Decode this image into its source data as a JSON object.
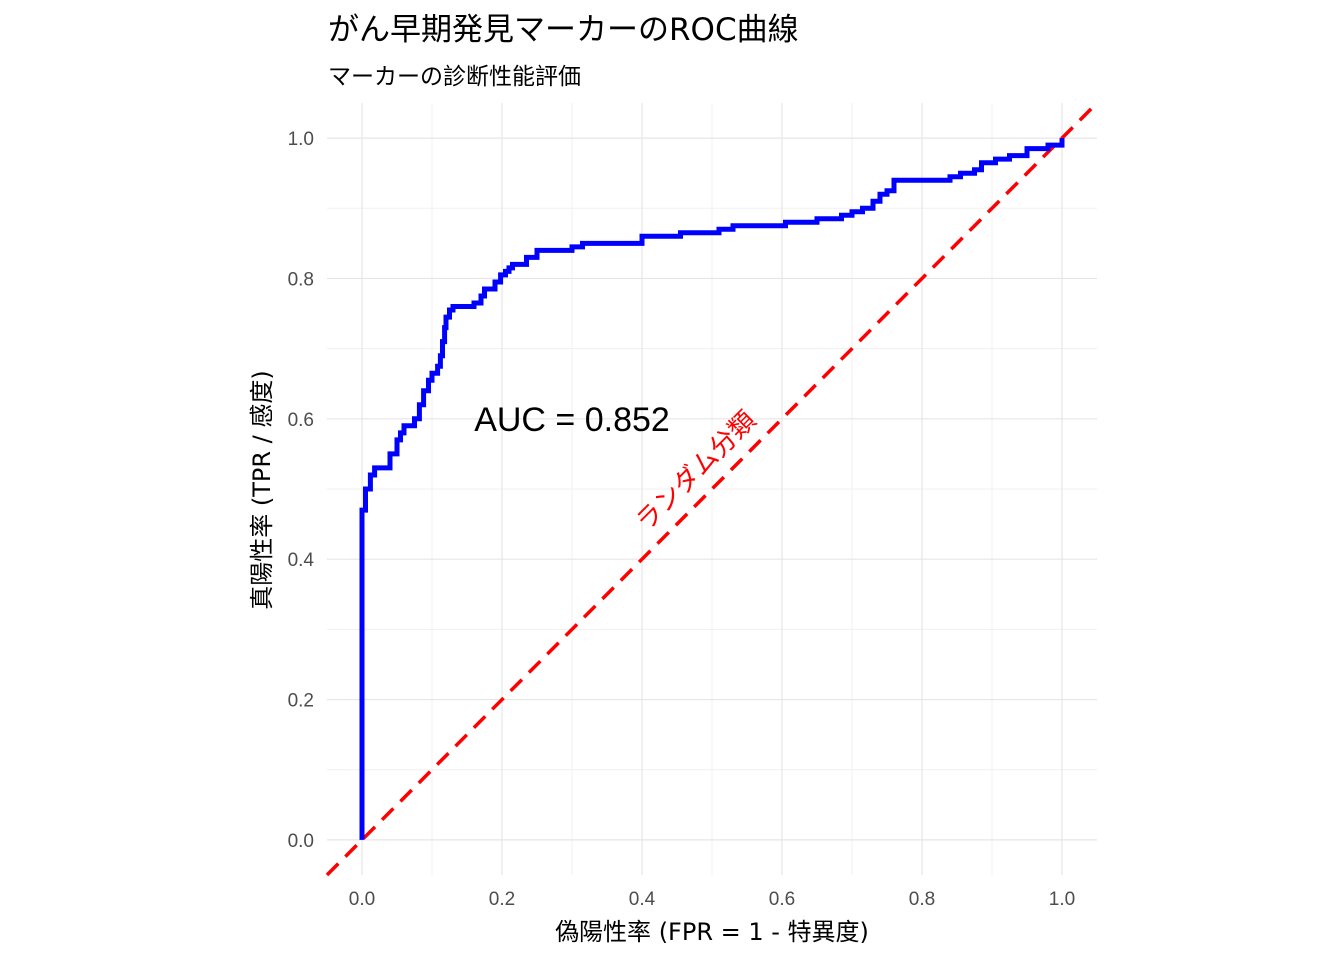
{
  "chart_data": {
    "type": "line",
    "title": "がん早期発見マーカーのROC曲線",
    "subtitle": "マーカーの診断性能評価",
    "xlabel": "偽陽性率 (FPR = 1 - 特異度)",
    "ylabel": "真陽性率 (TPR / 感度)",
    "xlim": [
      -0.05,
      1.05
    ],
    "ylim": [
      -0.05,
      1.05
    ],
    "x_ticks": [
      "0.0",
      "0.2",
      "0.4",
      "0.6",
      "0.8",
      "1.0"
    ],
    "y_ticks": [
      "0.0",
      "0.2",
      "0.4",
      "0.6",
      "0.8",
      "1.0"
    ],
    "grid": true,
    "legend": "none",
    "series": [
      {
        "color": "#0000ff",
        "style": "step",
        "points": [
          [
            0.0,
            0.0
          ],
          [
            0.0,
            0.47
          ],
          [
            0.005,
            0.47
          ],
          [
            0.005,
            0.5
          ],
          [
            0.012,
            0.5
          ],
          [
            0.012,
            0.52
          ],
          [
            0.018,
            0.52
          ],
          [
            0.018,
            0.53
          ],
          [
            0.04,
            0.53
          ],
          [
            0.04,
            0.55
          ],
          [
            0.05,
            0.55
          ],
          [
            0.05,
            0.57
          ],
          [
            0.055,
            0.57
          ],
          [
            0.055,
            0.58
          ],
          [
            0.06,
            0.58
          ],
          [
            0.06,
            0.59
          ],
          [
            0.07,
            0.59
          ],
          [
            0.07,
            0.59
          ],
          [
            0.075,
            0.59
          ],
          [
            0.075,
            0.6
          ],
          [
            0.082,
            0.6
          ],
          [
            0.082,
            0.62
          ],
          [
            0.088,
            0.62
          ],
          [
            0.088,
            0.64
          ],
          [
            0.095,
            0.64
          ],
          [
            0.095,
            0.655
          ],
          [
            0.1,
            0.655
          ],
          [
            0.1,
            0.665
          ],
          [
            0.108,
            0.665
          ],
          [
            0.108,
            0.675
          ],
          [
            0.112,
            0.675
          ],
          [
            0.112,
            0.69
          ],
          [
            0.115,
            0.69
          ],
          [
            0.115,
            0.71
          ],
          [
            0.118,
            0.71
          ],
          [
            0.118,
            0.73
          ],
          [
            0.12,
            0.73
          ],
          [
            0.12,
            0.745
          ],
          [
            0.125,
            0.745
          ],
          [
            0.125,
            0.755
          ],
          [
            0.13,
            0.755
          ],
          [
            0.13,
            0.76
          ],
          [
            0.16,
            0.76
          ],
          [
            0.16,
            0.765
          ],
          [
            0.17,
            0.765
          ],
          [
            0.17,
            0.775
          ],
          [
            0.175,
            0.775
          ],
          [
            0.175,
            0.785
          ],
          [
            0.19,
            0.785
          ],
          [
            0.19,
            0.795
          ],
          [
            0.198,
            0.795
          ],
          [
            0.198,
            0.805
          ],
          [
            0.205,
            0.805
          ],
          [
            0.205,
            0.81
          ],
          [
            0.21,
            0.81
          ],
          [
            0.21,
            0.815
          ],
          [
            0.215,
            0.815
          ],
          [
            0.215,
            0.82
          ],
          [
            0.235,
            0.82
          ],
          [
            0.235,
            0.83
          ],
          [
            0.25,
            0.83
          ],
          [
            0.25,
            0.84
          ],
          [
            0.3,
            0.84
          ],
          [
            0.3,
            0.845
          ],
          [
            0.315,
            0.845
          ],
          [
            0.315,
            0.85
          ],
          [
            0.4,
            0.85
          ],
          [
            0.4,
            0.86
          ],
          [
            0.455,
            0.86
          ],
          [
            0.455,
            0.865
          ],
          [
            0.51,
            0.865
          ],
          [
            0.51,
            0.87
          ],
          [
            0.53,
            0.87
          ],
          [
            0.53,
            0.875
          ],
          [
            0.605,
            0.875
          ],
          [
            0.605,
            0.88
          ],
          [
            0.65,
            0.88
          ],
          [
            0.65,
            0.885
          ],
          [
            0.685,
            0.885
          ],
          [
            0.685,
            0.89
          ],
          [
            0.7,
            0.89
          ],
          [
            0.7,
            0.895
          ],
          [
            0.715,
            0.895
          ],
          [
            0.715,
            0.9
          ],
          [
            0.73,
            0.9
          ],
          [
            0.73,
            0.91
          ],
          [
            0.74,
            0.91
          ],
          [
            0.74,
            0.92
          ],
          [
            0.75,
            0.92
          ],
          [
            0.75,
            0.925
          ],
          [
            0.76,
            0.925
          ],
          [
            0.76,
            0.93
          ],
          [
            0.76,
            0.94
          ],
          [
            0.84,
            0.94
          ],
          [
            0.84,
            0.945
          ],
          [
            0.855,
            0.945
          ],
          [
            0.855,
            0.95
          ],
          [
            0.875,
            0.95
          ],
          [
            0.875,
            0.955
          ],
          [
            0.885,
            0.955
          ],
          [
            0.885,
            0.965
          ],
          [
            0.905,
            0.965
          ],
          [
            0.905,
            0.97
          ],
          [
            0.925,
            0.97
          ],
          [
            0.925,
            0.975
          ],
          [
            0.95,
            0.975
          ],
          [
            0.95,
            0.985
          ],
          [
            0.98,
            0.985
          ],
          [
            0.98,
            0.99
          ],
          [
            1.0,
            0.99
          ],
          [
            1.0,
            1.0
          ]
        ]
      },
      {
        "color": "#ff0000",
        "style": "dashed",
        "points": [
          [
            -0.05,
            -0.05
          ],
          [
            1.05,
            1.05
          ]
        ]
      }
    ],
    "annotations": [
      {
        "text": "AUC = 0.852",
        "x": 0.3,
        "y": 0.6,
        "color": "#000000"
      },
      {
        "text": "ランダム分類",
        "x": 0.5,
        "y": 0.5,
        "color": "#ff0000",
        "rotation": 45
      }
    ]
  }
}
